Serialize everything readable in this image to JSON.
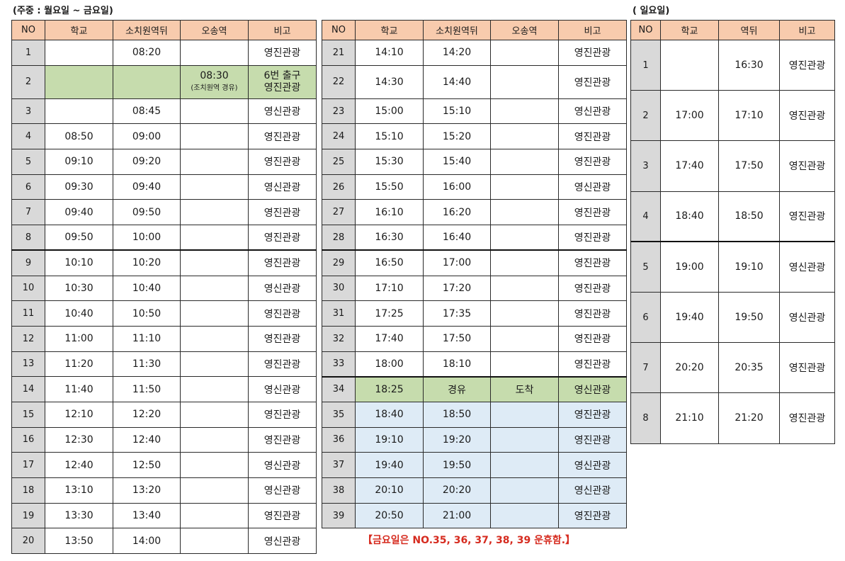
{
  "titles": {
    "weekday": "(주중 : 월요일 ~ 금요일)",
    "sunday": "( 일요일)"
  },
  "headers": {
    "weekday": [
      "NO",
      "학교",
      "소치원역뒤",
      "오송역",
      "비고"
    ],
    "sunday": [
      "NO",
      "학교",
      "역뒤",
      "비고"
    ]
  },
  "weekday_rows_left": [
    {
      "no": "1",
      "school": "",
      "station": "08:20",
      "osong": "",
      "note": "영진관광"
    },
    {
      "no": "2",
      "school": "",
      "station": "",
      "osong": "08:30",
      "osong_sub": "(조치원역 경유)",
      "note": "6번 출구",
      "note_sub": "영진관광"
    },
    {
      "no": "3",
      "school": "",
      "station": "08:45",
      "osong": "",
      "note": "영신관광"
    },
    {
      "no": "4",
      "school": "08:50",
      "station": "09:00",
      "osong": "",
      "note": "영진관광"
    },
    {
      "no": "5",
      "school": "09:10",
      "station": "09:20",
      "osong": "",
      "note": "영진관광"
    },
    {
      "no": "6",
      "school": "09:30",
      "station": "09:40",
      "osong": "",
      "note": "영신관광"
    },
    {
      "no": "7",
      "school": "09:40",
      "station": "09:50",
      "osong": "",
      "note": "영진관광"
    },
    {
      "no": "8",
      "school": "09:50",
      "station": "10:00",
      "osong": "",
      "note": "영진관광"
    },
    {
      "no": "9",
      "school": "10:10",
      "station": "10:20",
      "osong": "",
      "note": "영진관광"
    },
    {
      "no": "10",
      "school": "10:30",
      "station": "10:40",
      "osong": "",
      "note": "영신관광"
    },
    {
      "no": "11",
      "school": "10:40",
      "station": "10:50",
      "osong": "",
      "note": "영진관광"
    },
    {
      "no": "12",
      "school": "11:00",
      "station": "11:10",
      "osong": "",
      "note": "영진관광"
    },
    {
      "no": "13",
      "school": "11:20",
      "station": "11:30",
      "osong": "",
      "note": "영진관광"
    },
    {
      "no": "14",
      "school": "11:40",
      "station": "11:50",
      "osong": "",
      "note": "영신관광"
    },
    {
      "no": "15",
      "school": "12:10",
      "station": "12:20",
      "osong": "",
      "note": "영진관광"
    },
    {
      "no": "16",
      "school": "12:30",
      "station": "12:40",
      "osong": "",
      "note": "영진관광"
    },
    {
      "no": "17",
      "school": "12:40",
      "station": "12:50",
      "osong": "",
      "note": "영신관광"
    },
    {
      "no": "18",
      "school": "13:10",
      "station": "13:20",
      "osong": "",
      "note": "영신관광"
    },
    {
      "no": "19",
      "school": "13:30",
      "station": "13:40",
      "osong": "",
      "note": "영진관광"
    },
    {
      "no": "20",
      "school": "13:50",
      "station": "14:00",
      "osong": "",
      "note": "영신관광"
    }
  ],
  "weekday_rows_right": [
    {
      "no": "21",
      "school": "14:10",
      "station": "14:20",
      "osong": "",
      "note": "영진관광"
    },
    {
      "no": "22",
      "school": "14:30",
      "station": "14:40",
      "osong": "",
      "note": "영진관광"
    },
    {
      "no": "23",
      "school": "15:00",
      "station": "15:10",
      "osong": "",
      "note": "영신관광"
    },
    {
      "no": "24",
      "school": "15:10",
      "station": "15:20",
      "osong": "",
      "note": "영진관광"
    },
    {
      "no": "25",
      "school": "15:30",
      "station": "15:40",
      "osong": "",
      "note": "영진관광"
    },
    {
      "no": "26",
      "school": "15:50",
      "station": "16:00",
      "osong": "",
      "note": "영신관광"
    },
    {
      "no": "27",
      "school": "16:10",
      "station": "16:20",
      "osong": "",
      "note": "영진관광"
    },
    {
      "no": "28",
      "school": "16:30",
      "station": "16:40",
      "osong": "",
      "note": "영진관광"
    },
    {
      "no": "29",
      "school": "16:50",
      "station": "17:00",
      "osong": "",
      "note": "영진관광"
    },
    {
      "no": "30",
      "school": "17:10",
      "station": "17:20",
      "osong": "",
      "note": "영진관광"
    },
    {
      "no": "31",
      "school": "17:25",
      "station": "17:35",
      "osong": "",
      "note": "영진관광"
    },
    {
      "no": "32",
      "school": "17:40",
      "station": "17:50",
      "osong": "",
      "note": "영진관광"
    },
    {
      "no": "33",
      "school": "18:00",
      "station": "18:10",
      "osong": "",
      "note": "영진관광"
    },
    {
      "no": "34",
      "school": "18:25",
      "station": "경유",
      "osong": "도착",
      "note": "영신관광"
    },
    {
      "no": "35",
      "school": "18:40",
      "station": "18:50",
      "osong": "",
      "note": "영진관광"
    },
    {
      "no": "36",
      "school": "19:10",
      "station": "19:20",
      "osong": "",
      "note": "영진관광"
    },
    {
      "no": "37",
      "school": "19:40",
      "station": "19:50",
      "osong": "",
      "note": "영신관광"
    },
    {
      "no": "38",
      "school": "20:10",
      "station": "20:20",
      "osong": "",
      "note": "영신관광"
    },
    {
      "no": "39",
      "school": "20:50",
      "station": "21:00",
      "osong": "",
      "note": "영진관광"
    }
  ],
  "sunday_rows": [
    {
      "no": "1",
      "school": "",
      "station": "16:30",
      "note": "영진관광"
    },
    {
      "no": "2",
      "school": "17:00",
      "station": "17:10",
      "note": "영진관광"
    },
    {
      "no": "3",
      "school": "17:40",
      "station": "17:50",
      "note": "영진관광"
    },
    {
      "no": "4",
      "school": "18:40",
      "station": "18:50",
      "note": "영진관광"
    },
    {
      "no": "5",
      "school": "19:00",
      "station": "19:10",
      "note": "영신관광"
    },
    {
      "no": "6",
      "school": "19:40",
      "station": "19:50",
      "note": "영신관광"
    },
    {
      "no": "7",
      "school": "20:20",
      "station": "20:35",
      "note": "영진관광"
    },
    {
      "no": "8",
      "school": "21:10",
      "station": "21:20",
      "note": "영진관광"
    }
  ],
  "friday_note": "【금요일은 NO.35, 36, 37, 38, 39 운휴함.】",
  "colors": {
    "header": "#f8cbad",
    "no_column": "#d9d9d9",
    "highlight_green": "#c6dcad",
    "highlight_blue": "#deebf6",
    "note_red": "#d62b1f"
  }
}
